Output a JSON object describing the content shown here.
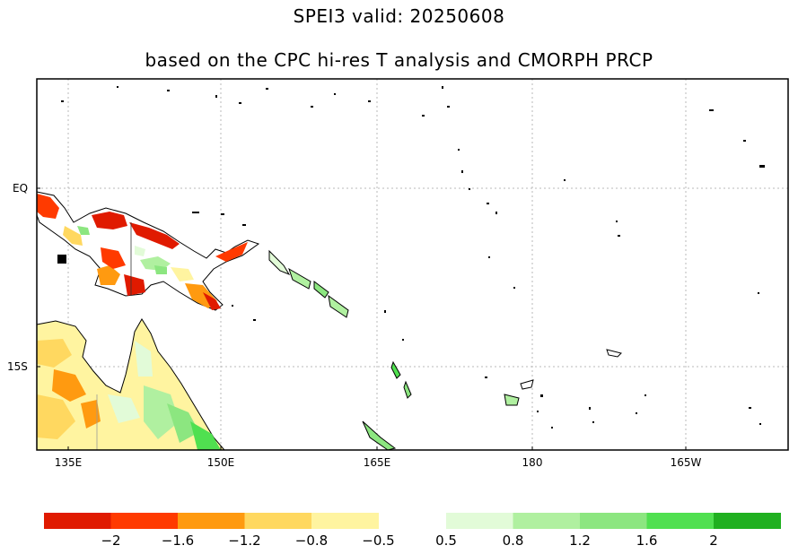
{
  "title": "SPEI3  valid: 20250608",
  "subtitle": "based on the CPC hi-res T analysis and CMORPH PRCP",
  "map": {
    "lon_ticks": [
      "135E",
      "150E",
      "165E",
      "180",
      "165W"
    ],
    "lat_ticks": [
      "EQ",
      "15S"
    ],
    "grid": true
  },
  "legend": {
    "colors": [
      "#e01a00",
      "#ff3a00",
      "#ff9a10",
      "#ffd860",
      "#fff4a0",
      "#e2fbd8",
      "#b0f0a0",
      "#8ce680",
      "#50e050",
      "#20b020"
    ],
    "labels": [
      "−2",
      "−1.6",
      "−1.2",
      "−0.8",
      "−0.5",
      "0.5",
      "0.8",
      "1.2",
      "1.6",
      "2"
    ]
  }
}
